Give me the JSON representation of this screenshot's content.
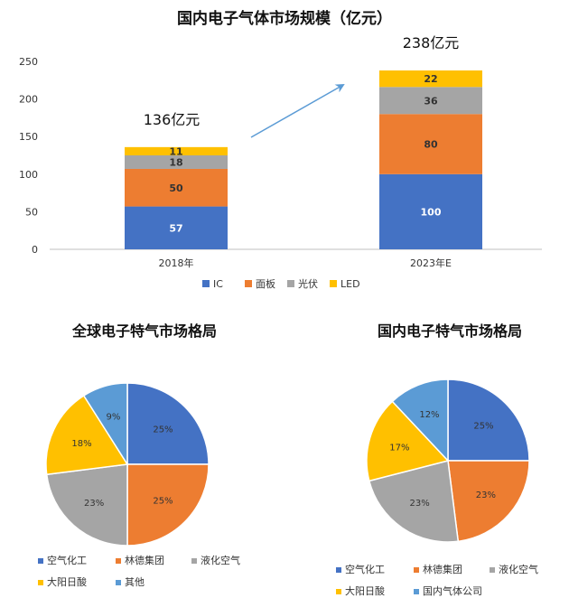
{
  "chart_data": [
    {
      "type": "bar",
      "stacked": true,
      "title": "国内电子气体市场规模（亿元）",
      "categories": [
        "2018年",
        "2023年E"
      ],
      "series": [
        {
          "name": "IC",
          "color": "#4472C4",
          "values": [
            57,
            100
          ]
        },
        {
          "name": "面板",
          "color": "#ED7D31",
          "values": [
            50,
            80
          ]
        },
        {
          "name": "光伏",
          "color": "#A5A5A5",
          "values": [
            18,
            36
          ]
        },
        {
          "name": "LED",
          "color": "#FFC000",
          "values": [
            11,
            22
          ]
        }
      ],
      "totals": [
        "136亿元",
        "238亿元"
      ],
      "ylim": [
        0,
        250
      ],
      "yticks": [
        0,
        50,
        100,
        150,
        200,
        250
      ],
      "legend": "bottom",
      "grid": false,
      "annotation": "arrow from 2018 total to 2023E total"
    },
    {
      "type": "pie",
      "title": "全球电子特气市场格局",
      "labels": [
        "空气化工",
        "林德集团",
        "液化空气",
        "大阳日酸",
        "其他"
      ],
      "values": [
        25,
        25,
        23,
        18,
        9
      ],
      "value_labels": [
        "25%",
        "25%",
        "23%",
        "18%",
        "9%"
      ],
      "colors": [
        "#4472C4",
        "#ED7D31",
        "#A5A5A5",
        "#FFC000",
        "#5B9BD5"
      ],
      "legend": "bottom"
    },
    {
      "type": "pie",
      "title": "国内电子特气市场格局",
      "labels": [
        "空气化工",
        "林德集团",
        "液化空气",
        "大阳日酸",
        "国内气体公司"
      ],
      "values": [
        25,
        23,
        23,
        17,
        12
      ],
      "value_labels": [
        "25%",
        "23%",
        "23%",
        "17%",
        "12%"
      ],
      "colors": [
        "#4472C4",
        "#ED7D31",
        "#A5A5A5",
        "#FFC000",
        "#5B9BD5"
      ],
      "legend": "bottom"
    }
  ]
}
